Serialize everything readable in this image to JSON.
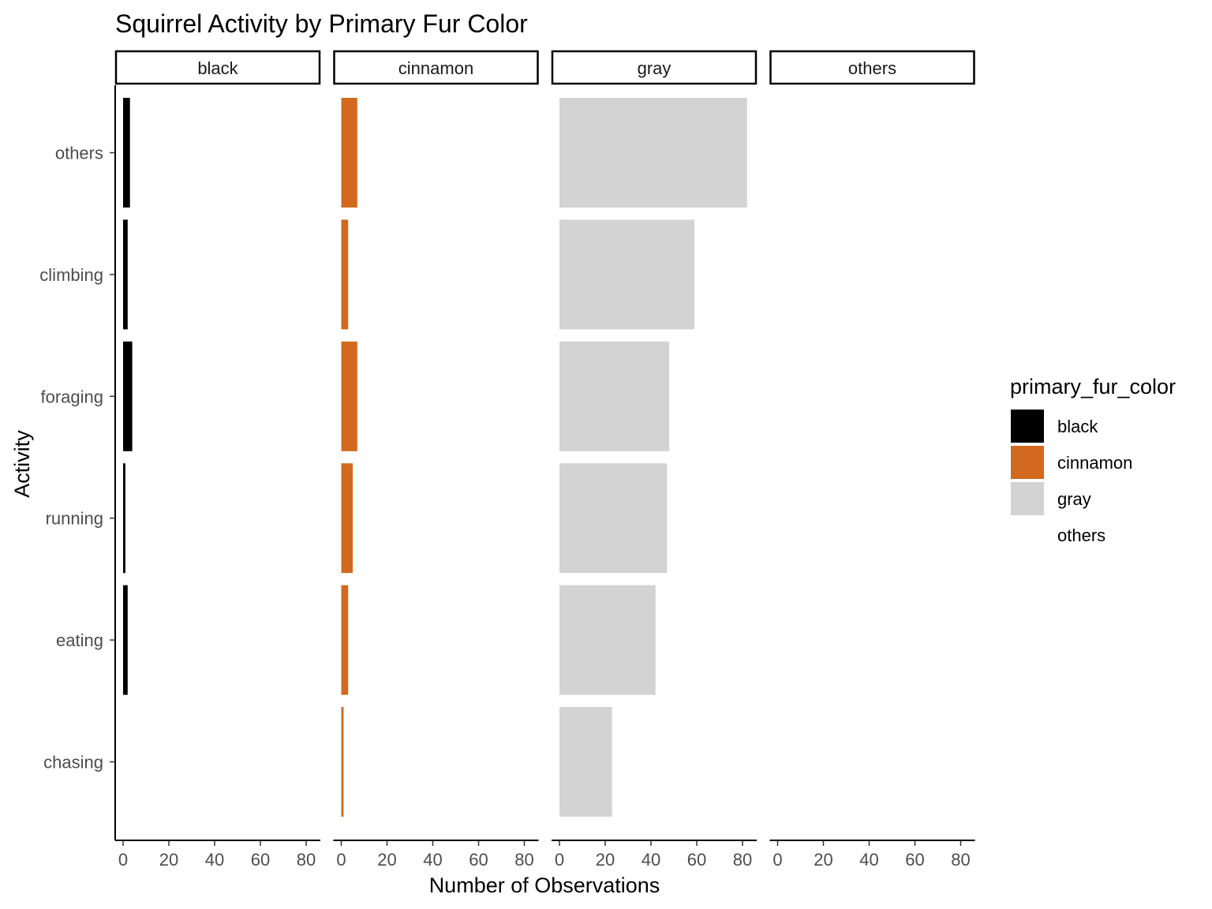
{
  "chart_data": {
    "type": "bar",
    "orientation": "horizontal",
    "title": "Squirrel Activity by Primary Fur Color",
    "xlabel": "Number of Observations",
    "ylabel": "Activity",
    "categories": [
      "others",
      "climbing",
      "foraging",
      "running",
      "eating",
      "chasing"
    ],
    "facets": [
      "black",
      "cinnamon",
      "gray",
      "others"
    ],
    "xlim": [
      0,
      85
    ],
    "xticks": [
      "0",
      "20",
      "40",
      "60",
      "80"
    ],
    "series": [
      {
        "name": "black",
        "color": "#000000",
        "values": [
          3,
          2,
          4,
          1,
          2,
          0
        ]
      },
      {
        "name": "cinnamon",
        "color": "#D2691E",
        "values": [
          7,
          3,
          7,
          5,
          3,
          1
        ]
      },
      {
        "name": "gray",
        "color": "#D3D3D3",
        "values": [
          82,
          59,
          48,
          47,
          42,
          23
        ]
      },
      {
        "name": "others",
        "color": "#FFFFFF",
        "values": [
          0,
          0,
          0,
          0,
          0,
          0
        ]
      }
    ],
    "legend": {
      "title": "primary_fur_color",
      "position": "right",
      "items": [
        {
          "label": "black",
          "color": "#000000"
        },
        {
          "label": "cinnamon",
          "color": "#D2691E"
        },
        {
          "label": "gray",
          "color": "#D3D3D3"
        },
        {
          "label": "others",
          "color": "#FFFFFF"
        }
      ]
    },
    "grid": false
  }
}
